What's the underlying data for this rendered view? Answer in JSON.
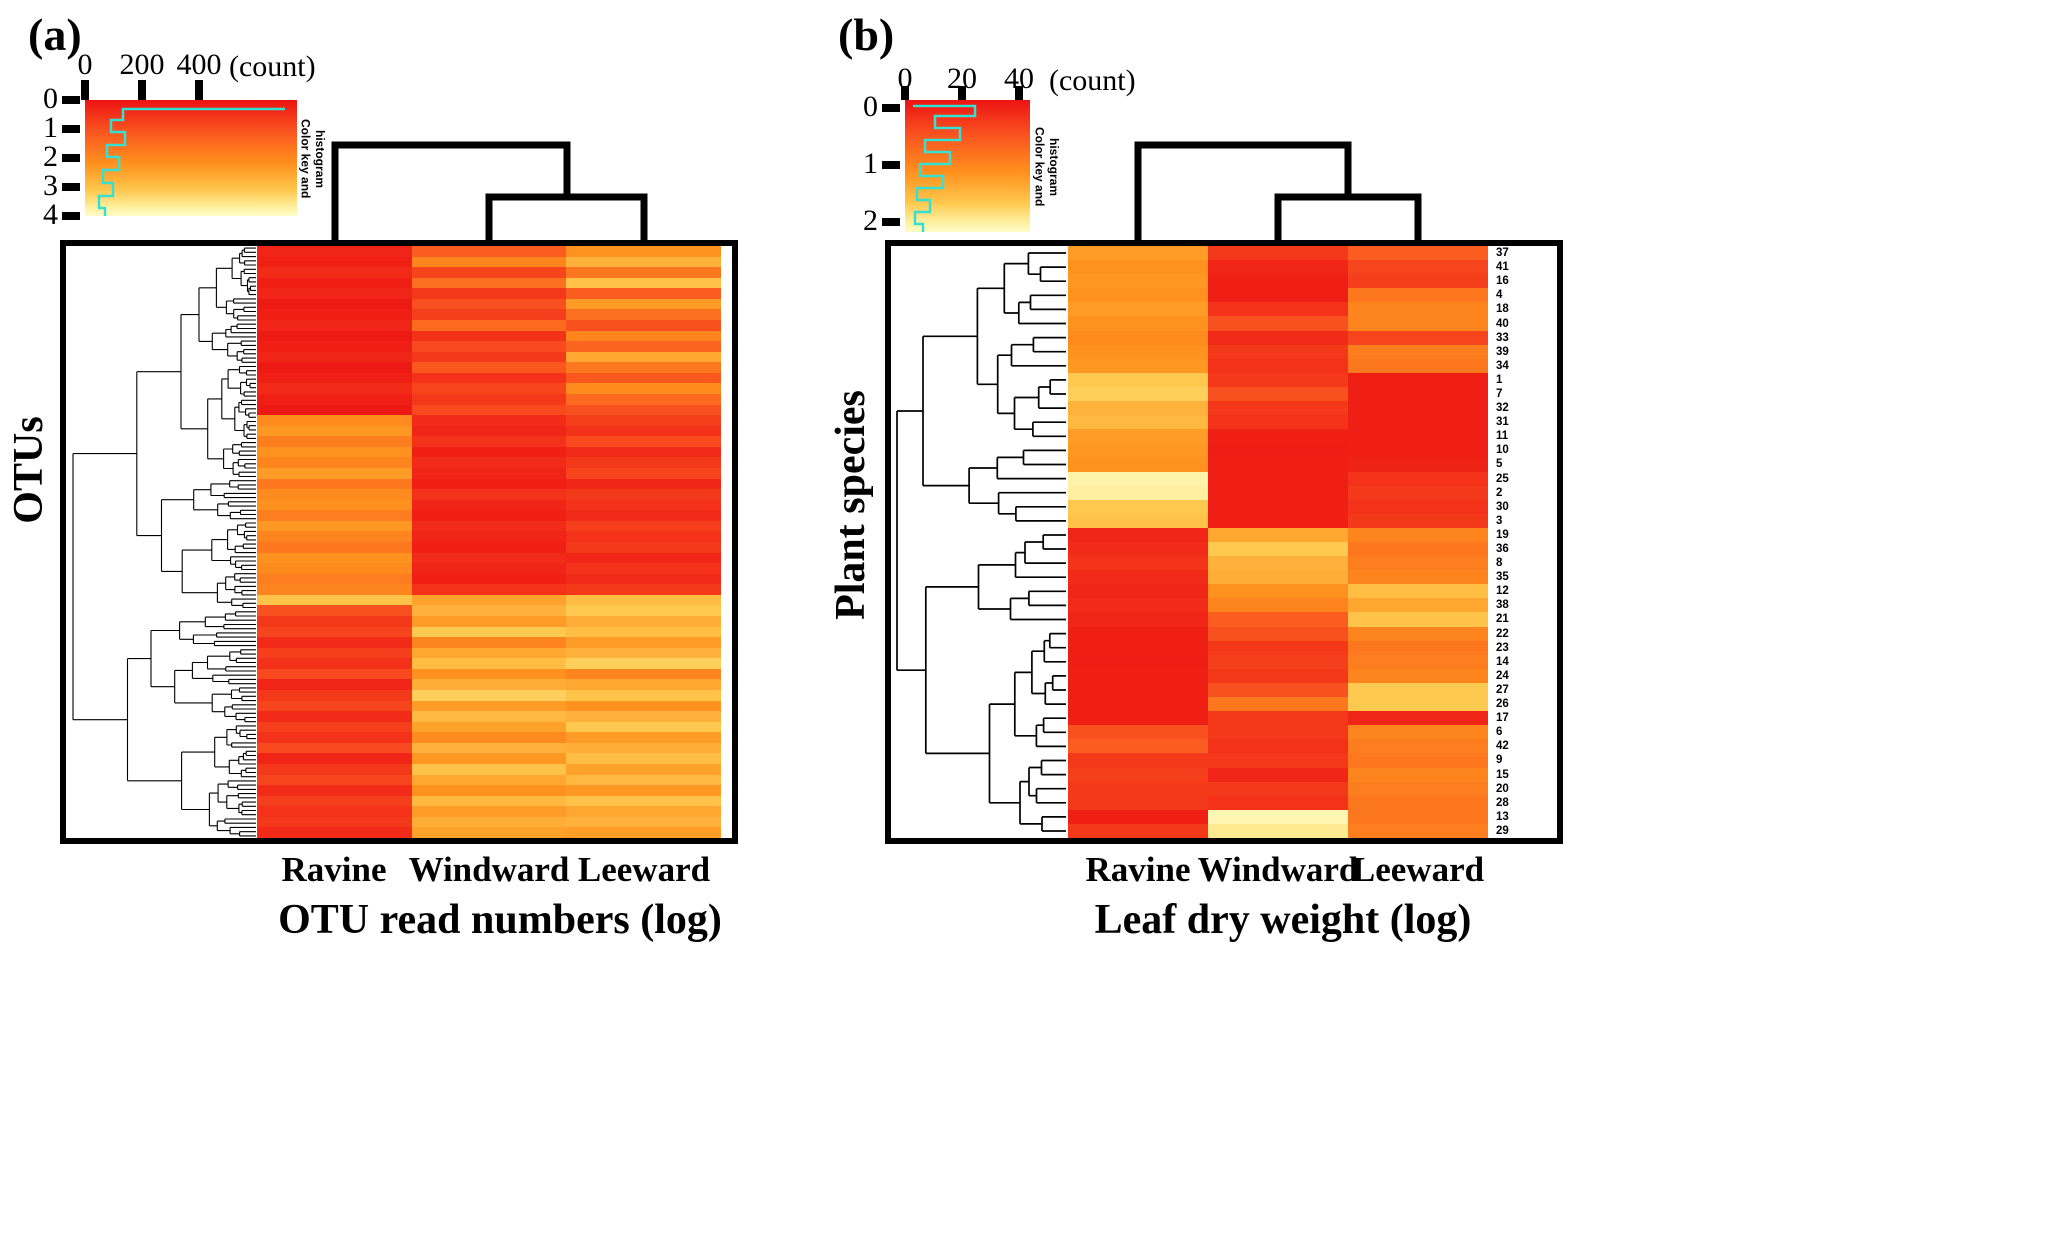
{
  "colors": {
    "scale_stops": [
      [
        0,
        "#ec1313"
      ],
      [
        0.25,
        "#f9501f"
      ],
      [
        0.5,
        "#ff911e"
      ],
      [
        0.75,
        "#ffc84e"
      ],
      [
        0.9,
        "#ffef9e"
      ],
      [
        1,
        "#fffdc8"
      ]
    ],
    "histogram_trace": "#35dfd2",
    "dendrogram": "#000000",
    "frame": "#000000"
  },
  "chart_data": [
    {
      "type": "heatmap",
      "panel_label": "(a)",
      "ylabel": "OTUs",
      "xlabel": "OTU read numbers (log)",
      "columns": [
        "Ravine",
        "Windward",
        "Leeward"
      ],
      "column_clustering": "Ravine vs (Windward, Leeward)",
      "value_scale": {
        "min": 0,
        "max": 4,
        "low": "red",
        "high": "pale yellow"
      },
      "color_key": {
        "count_ticks": [
          "0",
          "200",
          "400"
        ],
        "count_label": "(count)",
        "value_ticks": [
          "0",
          "1",
          "2",
          "3",
          "4"
        ],
        "caption": "Color key and histogram"
      },
      "values": [
        [
          0.3,
          1.2,
          2.0
        ],
        [
          0.2,
          1.8,
          2.6
        ],
        [
          0.4,
          0.8,
          1.6
        ],
        [
          0.2,
          1.5,
          2.9
        ],
        [
          0.3,
          0.6,
          1.2
        ],
        [
          0.1,
          1.0,
          2.2
        ],
        [
          0.2,
          0.7,
          1.5
        ],
        [
          0.3,
          1.4,
          1.0
        ],
        [
          0.1,
          0.5,
          1.8
        ],
        [
          0.2,
          0.9,
          1.3
        ],
        [
          0.3,
          0.6,
          2.4
        ],
        [
          0.1,
          1.1,
          1.6
        ],
        [
          0.2,
          0.5,
          1.1
        ],
        [
          0.4,
          0.8,
          1.9
        ],
        [
          0.2,
          0.6,
          1.4
        ],
        [
          0.1,
          0.9,
          1.0
        ],
        [
          1.9,
          0.4,
          0.7
        ],
        [
          2.1,
          0.3,
          0.5
        ],
        [
          1.7,
          0.5,
          0.9
        ],
        [
          2.0,
          0.2,
          0.4
        ],
        [
          1.8,
          0.4,
          0.6
        ],
        [
          2.2,
          0.3,
          0.8
        ],
        [
          1.6,
          0.2,
          0.3
        ],
        [
          1.9,
          0.5,
          0.6
        ],
        [
          2.0,
          0.3,
          0.5
        ],
        [
          1.7,
          0.2,
          0.4
        ],
        [
          2.1,
          0.4,
          0.7
        ],
        [
          1.8,
          0.3,
          0.5
        ],
        [
          1.6,
          0.2,
          0.6
        ],
        [
          2.0,
          0.4,
          0.3
        ],
        [
          1.9,
          0.3,
          0.5
        ],
        [
          1.7,
          0.2,
          0.4
        ],
        [
          1.8,
          0.5,
          0.6
        ],
        [
          2.9,
          2.3,
          2.8
        ],
        [
          1.0,
          2.6,
          3.0
        ],
        [
          0.6,
          2.2,
          2.5
        ],
        [
          0.8,
          3.0,
          2.8
        ],
        [
          0.4,
          1.8,
          2.2
        ],
        [
          0.7,
          2.4,
          2.6
        ],
        [
          0.5,
          2.8,
          3.1
        ],
        [
          0.9,
          2.0,
          1.8
        ],
        [
          0.3,
          2.5,
          2.4
        ],
        [
          0.6,
          3.1,
          2.9
        ],
        [
          0.8,
          2.2,
          2.0
        ],
        [
          0.4,
          2.7,
          2.6
        ],
        [
          0.7,
          2.3,
          3.0
        ],
        [
          0.5,
          1.9,
          2.2
        ],
        [
          0.9,
          2.6,
          2.5
        ],
        [
          0.3,
          2.1,
          2.8
        ],
        [
          0.6,
          2.9,
          2.3
        ],
        [
          0.8,
          2.4,
          2.7
        ],
        [
          0.4,
          2.0,
          2.1
        ],
        [
          0.7,
          2.7,
          2.9
        ],
        [
          0.5,
          2.2,
          2.4
        ],
        [
          0.6,
          2.5,
          2.6
        ],
        [
          0.4,
          2.3,
          2.2
        ]
      ]
    },
    {
      "type": "heatmap",
      "panel_label": "(b)",
      "ylabel": "Plant species",
      "xlabel": "Leaf dry weight (log)",
      "columns": [
        "Ravine",
        "Windward",
        "Leeward"
      ],
      "column_clustering": "Ravine vs (Windward, Leeward)",
      "value_scale": {
        "min": 0,
        "max": 2,
        "low": "red",
        "high": "pale yellow"
      },
      "color_key": {
        "count_ticks": [
          "0",
          "20",
          "40"
        ],
        "count_label": "(count)",
        "value_ticks": [
          "0",
          "1",
          "2"
        ],
        "caption": "Color key and histogram"
      },
      "row_labels": [
        "37",
        "41",
        "16",
        "4",
        "18",
        "40",
        "33",
        "39",
        "34",
        "1",
        "7",
        "32",
        "31",
        "11",
        "10",
        "5",
        "25",
        "2",
        "30",
        "3",
        "19",
        "36",
        "8",
        "35",
        "12",
        "38",
        "21",
        "22",
        "23",
        "14",
        "24",
        "27",
        "26",
        "17",
        "6",
        "42",
        "9",
        "15",
        "20",
        "28",
        "13",
        "29"
      ],
      "values": [
        [
          1.1,
          0.3,
          0.6
        ],
        [
          1.0,
          0.15,
          0.4
        ],
        [
          1.05,
          0.1,
          0.35
        ],
        [
          1.0,
          0.1,
          0.8
        ],
        [
          1.1,
          0.25,
          0.9
        ],
        [
          1.0,
          0.5,
          0.9
        ],
        [
          0.95,
          0.2,
          0.4
        ],
        [
          1.0,
          0.3,
          0.85
        ],
        [
          1.05,
          0.25,
          0.8
        ],
        [
          1.5,
          0.3,
          0.1
        ],
        [
          1.55,
          0.5,
          0.1
        ],
        [
          1.3,
          0.3,
          0.1
        ],
        [
          1.35,
          0.25,
          0.1
        ],
        [
          1.1,
          0.1,
          0.1
        ],
        [
          1.05,
          0.08,
          0.1
        ],
        [
          1.0,
          0.1,
          0.12
        ],
        [
          1.85,
          0.1,
          0.25
        ],
        [
          1.8,
          0.1,
          0.3
        ],
        [
          1.5,
          0.1,
          0.25
        ],
        [
          1.45,
          0.1,
          0.3
        ],
        [
          0.15,
          1.2,
          0.9
        ],
        [
          0.2,
          1.5,
          0.8
        ],
        [
          0.25,
          1.3,
          0.85
        ],
        [
          0.2,
          1.25,
          0.9
        ],
        [
          0.15,
          1.0,
          1.4
        ],
        [
          0.2,
          0.9,
          1.2
        ],
        [
          0.15,
          0.6,
          1.45
        ],
        [
          0.1,
          0.5,
          0.9
        ],
        [
          0.1,
          0.3,
          0.8
        ],
        [
          0.08,
          0.35,
          0.85
        ],
        [
          0.1,
          0.3,
          0.9
        ],
        [
          0.1,
          0.5,
          1.5
        ],
        [
          0.1,
          0.8,
          1.5
        ],
        [
          0.1,
          0.3,
          0.15
        ],
        [
          0.5,
          0.3,
          0.9
        ],
        [
          0.6,
          0.25,
          0.85
        ],
        [
          0.3,
          0.3,
          0.8
        ],
        [
          0.35,
          0.15,
          0.9
        ],
        [
          0.3,
          0.3,
          0.85
        ],
        [
          0.3,
          0.25,
          0.8
        ],
        [
          0.1,
          1.9,
          0.8
        ],
        [
          0.3,
          1.75,
          0.85
        ]
      ]
    }
  ]
}
